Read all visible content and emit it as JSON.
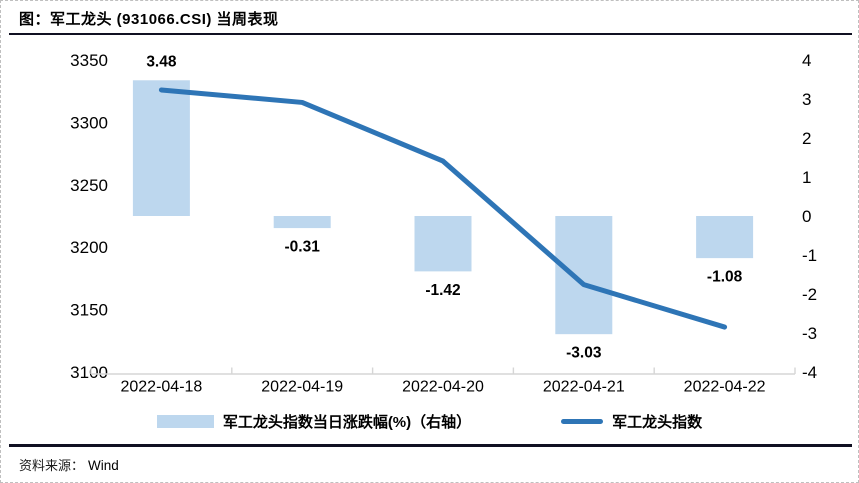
{
  "figure": {
    "title": "图：军工龙头 (931066.CSI) 当周表现",
    "source_label": "资料来源：",
    "source_value": "Wind"
  },
  "colors": {
    "bar_fill": "#BDD7EE",
    "line": "#2E75B6",
    "value_label": "#FF0000",
    "axis_line": "#D6D6D6",
    "text": "#000000"
  },
  "chart_data": {
    "type": "combo_bar_line",
    "title": "图：军工龙头 (931066.CSI) 当周表现",
    "categories": [
      "2022-04-18",
      "2022-04-19",
      "2022-04-20",
      "2022-04-21",
      "2022-04-22"
    ],
    "series": [
      {
        "name": "军工龙头指数当日涨跌幅(%)（右轴）",
        "type": "bar",
        "axis": "right",
        "values": [
          3.48,
          -0.31,
          -1.42,
          -3.03,
          -1.08
        ],
        "data_labels": [
          "3.48",
          "-0.31",
          "-1.42",
          "-3.03",
          "-1.08"
        ],
        "color": "#BDD7EE",
        "data_label_color": "#FF0000"
      },
      {
        "name": "军工龙头指数",
        "type": "line",
        "axis": "left",
        "values": [
          3326,
          3316,
          3269,
          3170,
          3136
        ],
        "color": "#2E75B6"
      }
    ],
    "left_axis": {
      "min": 3100,
      "max": 3350,
      "tick_step": 50,
      "ticks": [
        3350,
        3300,
        3250,
        3200,
        3150,
        3100
      ]
    },
    "right_axis": {
      "min": -4,
      "max": 4,
      "tick_step": 1,
      "ticks": [
        4,
        3,
        2,
        1,
        0,
        -1,
        -2,
        -3,
        -4
      ]
    },
    "gridlines": false,
    "legend_position": "bottom",
    "source": "Wind"
  }
}
